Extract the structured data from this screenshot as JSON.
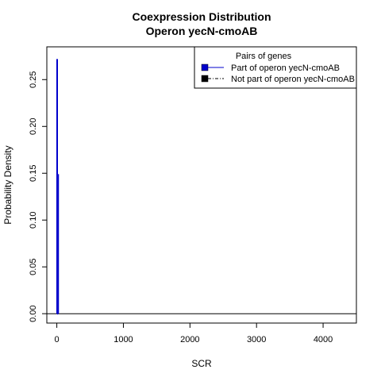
{
  "chart_data": {
    "type": "line",
    "title": "Coexpression Distribution",
    "subtitle": "Operon yecN-cmoAB",
    "xlabel": "SCR",
    "ylabel": "Probability Density",
    "xlim": [
      -150,
      4500
    ],
    "ylim": [
      -0.01,
      0.285
    ],
    "x_ticks": [
      0,
      1000,
      2000,
      3000,
      4000
    ],
    "x_tick_labels": [
      "0",
      "1000",
      "2000",
      "3000",
      "4000"
    ],
    "y_ticks": [
      0.0,
      0.05,
      0.1,
      0.15,
      0.2,
      0.25
    ],
    "y_tick_labels": [
      "0.00",
      "0.05",
      "0.10",
      "0.15",
      "0.20",
      "0.25"
    ],
    "grid": false,
    "legend": {
      "title": "Pairs of genes",
      "placement": "top-right",
      "entries": [
        {
          "name": "Part of operon yecN-cmoAB",
          "color": "#0000cc",
          "line": "solid"
        },
        {
          "name": "Not part of operon yecN-cmoAB",
          "color": "#000000",
          "line": "dashdot"
        }
      ]
    },
    "series": [
      {
        "name": "Part of operon yecN-cmoAB",
        "color": "#0000cc",
        "segments": [
          {
            "x": 5,
            "y0": 0,
            "y1": 0.272
          },
          {
            "x": 20,
            "y0": 0,
            "y1": 0.149
          }
        ]
      },
      {
        "name": "Not part of operon yecN-cmoAB",
        "color": "#000000",
        "x": [
          -150,
          4500
        ],
        "y": [
          0,
          0
        ]
      }
    ]
  }
}
